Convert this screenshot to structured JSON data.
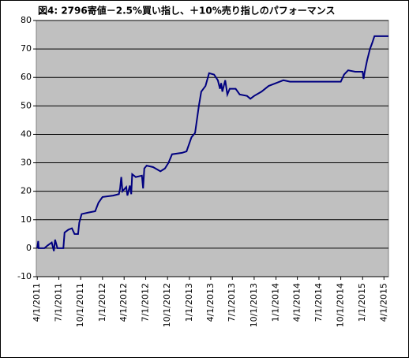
{
  "chart_data": {
    "type": "line",
    "title": "図4: 2796寄値－2.5%買い指し、＋10%売り指しのパフォーマンス",
    "x": [
      "2011-04-01",
      "2011-04-05",
      "2011-04-07",
      "2011-05-01",
      "2011-05-15",
      "2011-06-01",
      "2011-06-10",
      "2011-06-15",
      "2011-06-25",
      "2011-07-20",
      "2011-07-25",
      "2011-08-10",
      "2011-08-25",
      "2011-09-05",
      "2011-09-20",
      "2011-09-25",
      "2011-10-05",
      "2011-11-01",
      "2011-12-01",
      "2011-12-15",
      "2012-01-01",
      "2012-02-15",
      "2012-03-10",
      "2012-03-15",
      "2012-03-20",
      "2012-03-25",
      "2012-04-10",
      "2012-04-15",
      "2012-04-25",
      "2012-05-01",
      "2012-05-05",
      "2012-05-20",
      "2012-06-15",
      "2012-06-20",
      "2012-06-25",
      "2012-07-05",
      "2012-08-01",
      "2012-09-01",
      "2012-09-20",
      "2012-10-05",
      "2012-10-20",
      "2012-12-01",
      "2012-12-20",
      "2013-01-10",
      "2013-01-25",
      "2013-02-10",
      "2013-02-20",
      "2013-03-10",
      "2013-03-25",
      "2013-04-15",
      "2013-05-01",
      "2013-05-10",
      "2013-05-15",
      "2013-05-20",
      "2013-06-01",
      "2013-06-10",
      "2013-06-20",
      "2013-07-15",
      "2013-08-01",
      "2013-09-01",
      "2013-09-15",
      "2013-10-01",
      "2013-11-01",
      "2013-12-01",
      "2014-01-01",
      "2014-02-01",
      "2014-03-01",
      "2014-04-01",
      "2014-10-01",
      "2014-10-15",
      "2014-11-01",
      "2014-12-01",
      "2015-01-01",
      "2015-01-05",
      "2015-01-10",
      "2015-01-20",
      "2015-02-01",
      "2015-02-10",
      "2015-02-20",
      "2015-03-20",
      "2015-04-20"
    ],
    "series": [
      {
        "name": "パフォーマンス",
        "color": "#000080",
        "values": [
          0,
          2.5,
          0,
          0,
          1,
          2,
          -1,
          3,
          0,
          0,
          5.5,
          6.5,
          7,
          5,
          5,
          9,
          12,
          12.5,
          13,
          16,
          18,
          18.5,
          19,
          21,
          25,
          20,
          21.5,
          18.5,
          22,
          19,
          26,
          25,
          25.5,
          21,
          28,
          29,
          28.5,
          27,
          28,
          30,
          33,
          33.5,
          34,
          39,
          40.5,
          50,
          55,
          57,
          61.5,
          61,
          59,
          56,
          58,
          55,
          59,
          54,
          56,
          56,
          54,
          53.5,
          52.5,
          53.5,
          55,
          57,
          58,
          59,
          58.5,
          58.5,
          58.5,
          61,
          62.5,
          62,
          62,
          59.5,
          62,
          66,
          70,
          72,
          74.5,
          74.5,
          74.5
        ]
      }
    ],
    "xlim": [
      "2011-03-28",
      "2015-04-20"
    ],
    "xticks": [
      {
        "value": "2011-04-01",
        "label": "4/1/2011"
      },
      {
        "value": "2011-07-01",
        "label": "7/1/2011"
      },
      {
        "value": "2011-10-01",
        "label": "10/1/2011"
      },
      {
        "value": "2012-01-01",
        "label": "1/1/2012"
      },
      {
        "value": "2012-04-01",
        "label": "4/1/2012"
      },
      {
        "value": "2012-07-01",
        "label": "7/1/2012"
      },
      {
        "value": "2012-10-01",
        "label": "10/1/2012"
      },
      {
        "value": "2013-01-01",
        "label": "1/1/2013"
      },
      {
        "value": "2013-04-01",
        "label": "4/1/2013"
      },
      {
        "value": "2013-07-01",
        "label": "7/1/2013"
      },
      {
        "value": "2013-10-01",
        "label": "10/1/2013"
      },
      {
        "value": "2014-01-01",
        "label": "1/1/2014"
      },
      {
        "value": "2014-04-01",
        "label": "4/1/2014"
      },
      {
        "value": "2014-07-01",
        "label": "7/1/2014"
      },
      {
        "value": "2014-10-01",
        "label": "10/1/2014"
      },
      {
        "value": "2015-01-01",
        "label": "1/1/2015"
      },
      {
        "value": "2015-04-01",
        "label": "4/1/2015"
      }
    ],
    "ylim": [
      -10,
      80
    ],
    "yticks": [
      -10,
      0,
      10,
      20,
      30,
      40,
      50,
      60,
      70,
      80
    ],
    "grid": true
  }
}
